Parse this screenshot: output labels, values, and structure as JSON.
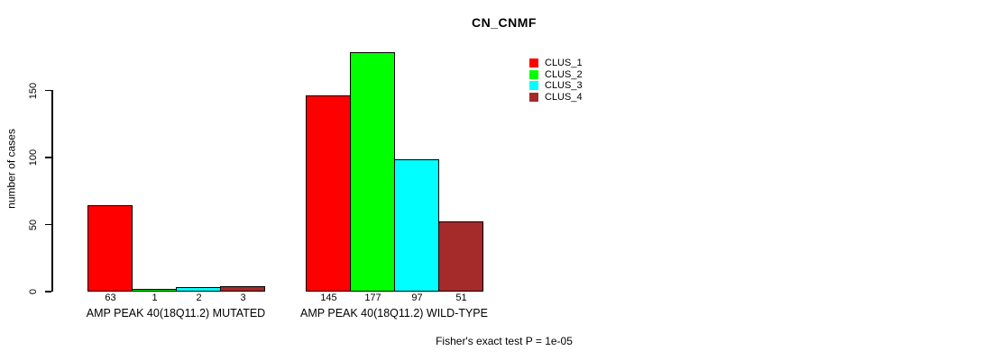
{
  "title": "CN_CNMF",
  "y_axis": {
    "label": "number of cases"
  },
  "footnote": "Fisher's exact test P = 1e-05",
  "chart_data": {
    "type": "bar",
    "title": "CN_CNMF",
    "xlabel": "",
    "ylabel": "number of cases",
    "categories": [
      "AMP PEAK 40(18Q11.2) MUTATED",
      "AMP PEAK 40(18Q11.2) WILD-TYPE"
    ],
    "series": [
      {
        "name": "CLUS_1",
        "color": "#ff0000",
        "values": [
          63,
          145
        ]
      },
      {
        "name": "CLUS_2",
        "color": "#00ff00",
        "values": [
          1,
          177
        ]
      },
      {
        "name": "CLUS_3",
        "color": "#00ffff",
        "values": [
          2,
          97
        ]
      },
      {
        "name": "CLUS_4",
        "color": "#a52a2a",
        "values": [
          3,
          51
        ]
      }
    ],
    "bar_value_labels": [
      [
        63,
        1,
        2,
        3
      ],
      [
        145,
        177,
        97,
        51
      ]
    ],
    "bar_border_color": "#000000",
    "yticks": [
      0,
      50,
      100,
      150
    ],
    "ylim": [
      0,
      185
    ],
    "grid": false,
    "legend_position": "top-right",
    "annotation": "Fisher's exact test P = 1e-05"
  }
}
